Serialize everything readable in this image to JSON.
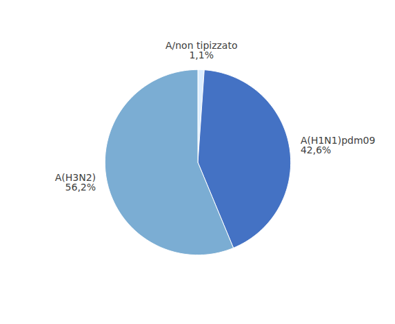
{
  "chart_data": {
    "type": "pie",
    "categories": [
      "A/non tipizzato",
      "A(H1N1)pdm09",
      "A(H3N2)"
    ],
    "values": [
      1.1,
      42.6,
      56.2
    ],
    "value_labels": [
      "1,1%",
      "42,6%",
      "56,2%"
    ],
    "colors": [
      "#DDEEFF",
      "#4472C4",
      "#7BADD3"
    ],
    "data_labels": true
  }
}
